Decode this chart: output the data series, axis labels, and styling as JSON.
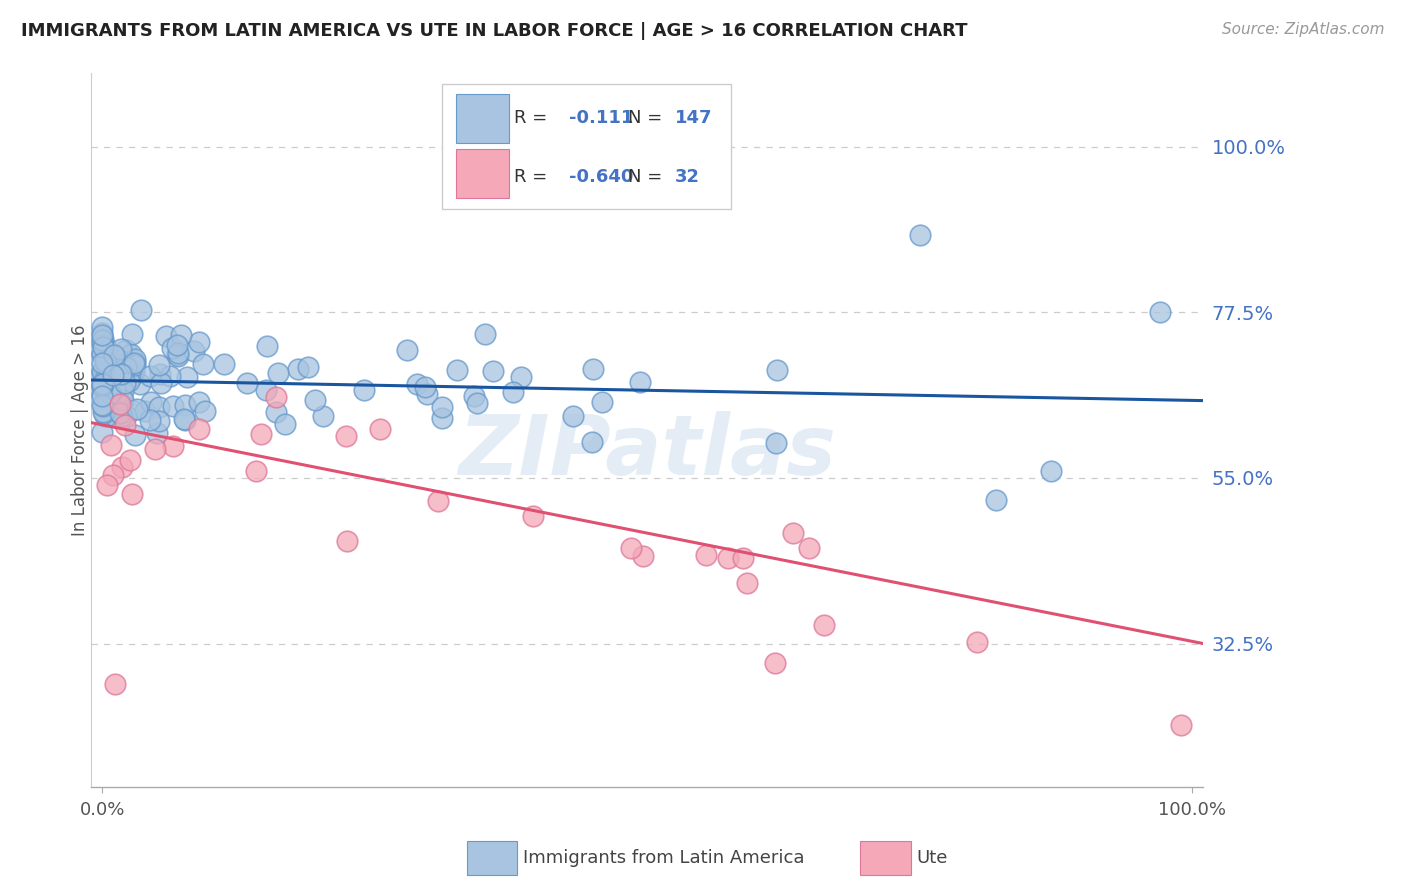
{
  "title": "IMMIGRANTS FROM LATIN AMERICA VS UTE IN LABOR FORCE | AGE > 16 CORRELATION CHART",
  "source": "Source: ZipAtlas.com",
  "ylabel": "In Labor Force | Age > 16",
  "xlim": [
    -0.01,
    1.01
  ],
  "ylim": [
    0.13,
    1.1
  ],
  "xtick_labels": [
    "0.0%",
    "100.0%"
  ],
  "ytick_labels": [
    "32.5%",
    "55.0%",
    "77.5%",
    "100.0%"
  ],
  "ytick_positions": [
    0.325,
    0.55,
    0.775,
    1.0
  ],
  "watermark": "ZIPatlas",
  "legend_blue_label": "Immigrants from Latin America",
  "legend_pink_label": "Ute",
  "blue_R": "-0.111",
  "blue_N": "147",
  "pink_R": "-0.640",
  "pink_N": "32",
  "blue_dot_color": "#a8c4e0",
  "blue_dot_edge": "#6699cc",
  "pink_dot_color": "#f4a8b8",
  "pink_dot_edge": "#dd7799",
  "blue_line_color": "#1a56a0",
  "pink_line_color": "#e05070",
  "ytick_color": "#4472c4",
  "background_color": "#ffffff",
  "grid_color": "#cccccc",
  "blue_line_start_y": 0.683,
  "blue_line_end_y": 0.655,
  "pink_line_start_y": 0.625,
  "pink_line_end_y": 0.325
}
